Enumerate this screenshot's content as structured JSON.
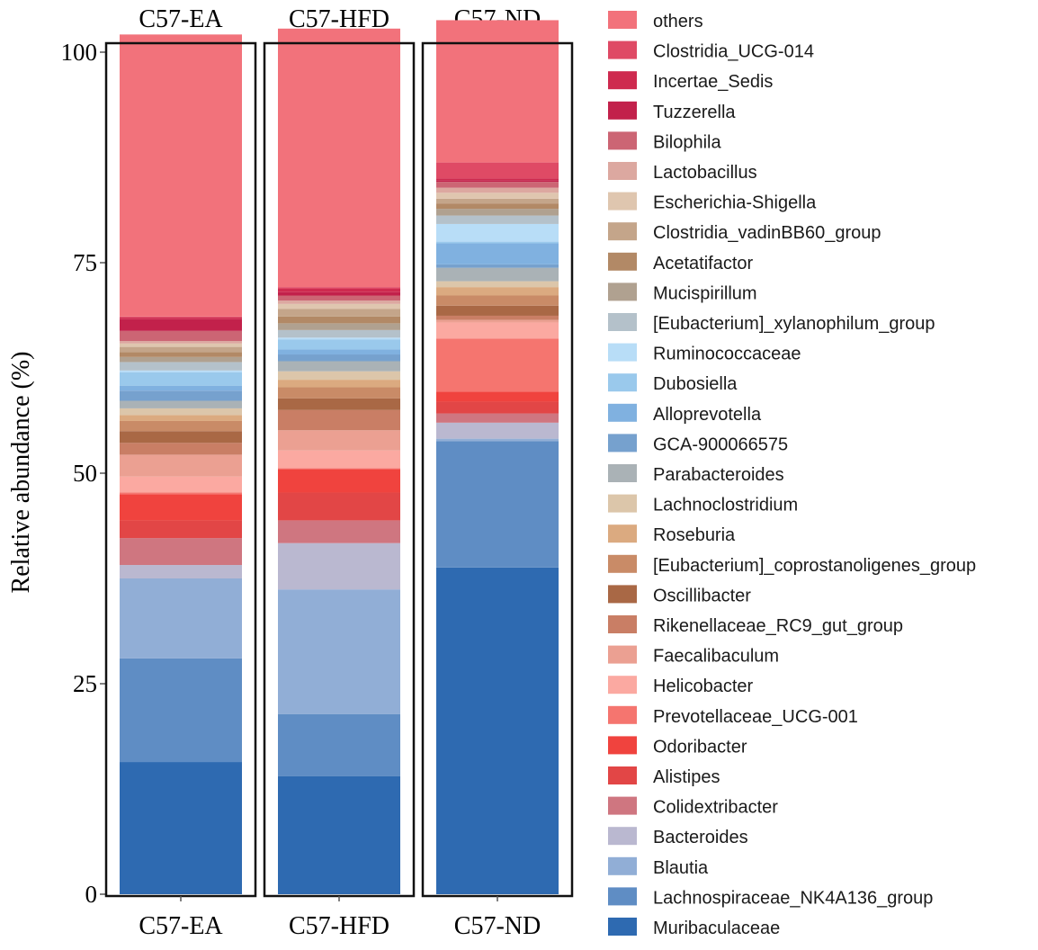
{
  "chart_data": {
    "type": "bar",
    "stacked": true,
    "ylabel": "Relative abundance (%)",
    "xlabel": "",
    "ylim": [
      0,
      100
    ],
    "yticks": [
      0,
      25,
      50,
      75,
      100
    ],
    "categories": [
      "C57-EA",
      "C57-HFD",
      "C57-ND"
    ],
    "legend_position": "right",
    "series": [
      {
        "name": "Muribaculaceae",
        "color": "#2E6AB1",
        "values": [
          15.7,
          14.0,
          38.8
        ]
      },
      {
        "name": "Lachnospiraceae_NK4A136_group",
        "color": "#5F8DC4",
        "values": [
          12.3,
          7.4,
          15.0
        ]
      },
      {
        "name": "Blautia",
        "color": "#91AED6",
        "values": [
          9.5,
          14.8,
          0.3
        ]
      },
      {
        "name": "Bacteroides",
        "color": "#BAB8D0",
        "values": [
          1.6,
          5.5,
          1.9
        ]
      },
      {
        "name": "Colidextribacter",
        "color": "#CF7680",
        "values": [
          3.2,
          2.7,
          1.1
        ]
      },
      {
        "name": "Alistipes",
        "color": "#E24646",
        "values": [
          2.1,
          3.3,
          1.4
        ]
      },
      {
        "name": "Odoribacter",
        "color": "#F0433E",
        "values": [
          3.1,
          2.8,
          1.2
        ]
      },
      {
        "name": "Prevotellaceae_UCG-001",
        "color": "#F5756F",
        "values": [
          0.2,
          0.1,
          6.3
        ]
      },
      {
        "name": "Helicobacter",
        "color": "#FBA9A1",
        "values": [
          1.9,
          2.1,
          1.9
        ]
      },
      {
        "name": "Faecalibaculum",
        "color": "#EBA092",
        "values": [
          2.6,
          2.4,
          0.3
        ]
      },
      {
        "name": "Rikenellaceae_RC9_gut_group",
        "color": "#C97E65",
        "values": [
          1.4,
          2.4,
          0.5
        ]
      },
      {
        "name": "Oscillibacter",
        "color": "#A96845",
        "values": [
          1.4,
          1.4,
          1.2
        ]
      },
      {
        "name": "[Eubacterium]_coprostanoligenes_group",
        "color": "#C98B67",
        "values": [
          1.2,
          1.3,
          1.2
        ]
      },
      {
        "name": "Roseburia",
        "color": "#DBAA80",
        "values": [
          0.7,
          0.9,
          1.0
        ]
      },
      {
        "name": "Lachnoclostridium",
        "color": "#DCC6AA",
        "values": [
          0.8,
          1.0,
          0.7
        ]
      },
      {
        "name": "Parabacteroides",
        "color": "#AAB2B6",
        "values": [
          0.9,
          1.2,
          1.6
        ]
      },
      {
        "name": "GCA-900066575",
        "color": "#76A1CE",
        "values": [
          1.2,
          0.8,
          0.4
        ]
      },
      {
        "name": "Alloprevotella",
        "color": "#80B1E0",
        "values": [
          0.6,
          0.6,
          2.5
        ]
      },
      {
        "name": "Dubosiella",
        "color": "#9AC9EC",
        "values": [
          1.6,
          1.2,
          0.2
        ]
      },
      {
        "name": "Ruminococcaceae",
        "color": "#B8DDF7",
        "values": [
          0.2,
          0.2,
          2.1
        ]
      },
      {
        "name": "[Eubacterium]_xylanophilum_group",
        "color": "#B4C1CA",
        "values": [
          1.0,
          0.9,
          1.0
        ]
      },
      {
        "name": "Mucispirillum",
        "color": "#B0A190",
        "values": [
          0.6,
          0.8,
          0.8
        ]
      },
      {
        "name": "Acetatifactor",
        "color": "#B28966",
        "values": [
          0.6,
          0.8,
          0.6
        ]
      },
      {
        "name": "Clostridia_vadinBB60_group",
        "color": "#C4A58A",
        "values": [
          0.6,
          0.9,
          0.6
        ]
      },
      {
        "name": "Escherichia-Shigella",
        "color": "#DFC6AF",
        "values": [
          0.4,
          0.6,
          0.7
        ]
      },
      {
        "name": "Lactobacillus",
        "color": "#DCA8A0",
        "values": [
          0.3,
          0.4,
          0.6
        ]
      },
      {
        "name": "Bilophila",
        "color": "#CC6574",
        "values": [
          1.2,
          0.6,
          0.7
        ]
      },
      {
        "name": "Tuzzerella",
        "color": "#C2214B",
        "values": [
          1.4,
          0.4,
          0.2
        ]
      },
      {
        "name": "Incertae_Sedis",
        "color": "#CE2A4F",
        "values": [
          0.2,
          0.4,
          0.2
        ]
      },
      {
        "name": "Clostridia_UCG-014",
        "color": "#DF4A65",
        "values": [
          0.1,
          0.2,
          1.9
        ]
      },
      {
        "name": "others",
        "color": "#F2727B",
        "values": [
          33.5,
          30.7,
          16.9
        ]
      }
    ]
  }
}
